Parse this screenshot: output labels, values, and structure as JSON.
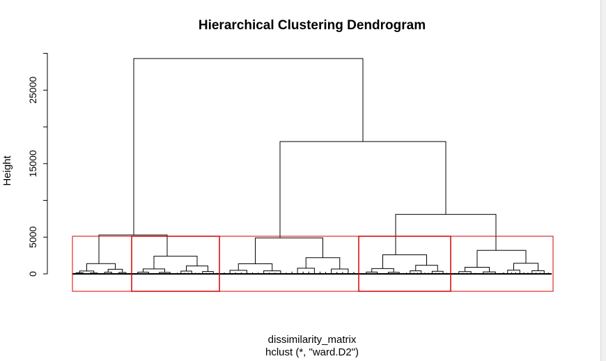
{
  "chart_data": {
    "type": "dendrogram",
    "title": "Hierarchical Clustering Dendrogram",
    "ylabel": "Height",
    "xlabel": "dissimilarity_matrix",
    "sublabel": "hclust (*, \"ward.D2\")",
    "y_ticks": [
      0,
      5000,
      15000,
      25000
    ],
    "ylim": [
      0,
      30000
    ],
    "merges": [
      {
        "name": "root",
        "height": 29300,
        "left": "cluster-1-2",
        "right": "cluster-3-4-5"
      },
      {
        "name": "cluster-1-2",
        "height": 5300,
        "left": "cluster-1",
        "right": "cluster-2"
      },
      {
        "name": "cluster-3-4-5",
        "height": 18000,
        "left": "cluster-3",
        "right": "cluster-4-5"
      },
      {
        "name": "cluster-4-5",
        "height": 8100,
        "left": "cluster-4",
        "right": "cluster-5"
      },
      {
        "name": "cluster-1",
        "height": 1400
      },
      {
        "name": "cluster-2",
        "height": 2400
      },
      {
        "name": "cluster-3",
        "height": 4900
      },
      {
        "name": "cluster-4",
        "height": 2600
      },
      {
        "name": "cluster-5",
        "height": 3200
      }
    ],
    "cut": {
      "k": 5,
      "color": "#d40000"
    }
  }
}
